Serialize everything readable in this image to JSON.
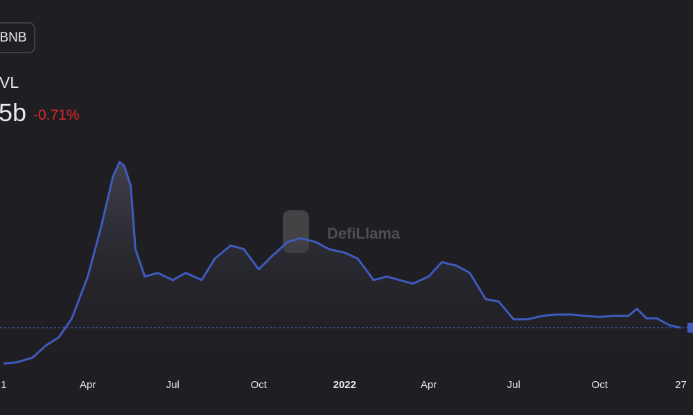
{
  "header": {
    "chain_button": "BNB",
    "metric_label": "VL",
    "metric_value": "5b",
    "change": "-0.71%"
  },
  "watermark": "DefiLlama",
  "chart_data": {
    "type": "area",
    "x": [
      "2021-01-01",
      "2021-01-15",
      "2021-02-01",
      "2021-02-15",
      "2021-03-01",
      "2021-03-15",
      "2021-04-01",
      "2021-04-15",
      "2021-04-28",
      "2021-05-05",
      "2021-05-10",
      "2021-05-17",
      "2021-05-22",
      "2021-06-01",
      "2021-06-15",
      "2021-07-01",
      "2021-07-15",
      "2021-08-01",
      "2021-08-15",
      "2021-09-01",
      "2021-09-15",
      "2021-10-01",
      "2021-10-15",
      "2021-11-01",
      "2021-11-15",
      "2021-12-01",
      "2021-12-15",
      "2022-01-01",
      "2022-01-15",
      "2022-02-01",
      "2022-02-15",
      "2022-03-01",
      "2022-03-15",
      "2022-04-01",
      "2022-04-15",
      "2022-05-01",
      "2022-05-15",
      "2022-06-01",
      "2022-06-15",
      "2022-07-01",
      "2022-07-15",
      "2022-08-01",
      "2022-08-15",
      "2022-09-01",
      "2022-09-15",
      "2022-10-01",
      "2022-10-15",
      "2022-11-01",
      "2022-11-10",
      "2022-11-20",
      "2022-12-01",
      "2022-12-15",
      "2022-12-27"
    ],
    "values": [
      2.0,
      2.1,
      2.5,
      3.5,
      4.2,
      5.8,
      9.3,
      13.4,
      17.7,
      18.9,
      18.6,
      16.9,
      11.6,
      9.3,
      9.6,
      9.0,
      9.6,
      9.0,
      10.8,
      11.9,
      11.6,
      9.9,
      11.0,
      12.2,
      12.5,
      12.2,
      11.6,
      11.3,
      10.8,
      9.0,
      9.3,
      9.0,
      8.7,
      9.3,
      10.5,
      10.2,
      9.6,
      7.4,
      7.2,
      5.7,
      5.7,
      6.0,
      6.1,
      6.1,
      6.0,
      5.9,
      6.0,
      6.0,
      6.6,
      5.8,
      5.8,
      5.2,
      5.0
    ],
    "color": "#3f5bc0",
    "xlim": [
      "2020-12-28",
      "2023-01-09"
    ],
    "ylim": [
      0,
      32.5
    ],
    "xticks": [
      {
        "value": "2021-01-01",
        "label": "1"
      },
      {
        "value": "2021-04-01",
        "label": "Apr"
      },
      {
        "value": "2021-07-01",
        "label": "Jul"
      },
      {
        "value": "2021-10-01",
        "label": "Oct"
      },
      {
        "value": "2022-01-01",
        "label": "2022"
      },
      {
        "value": "2022-04-01",
        "label": "Apr"
      },
      {
        "value": "2022-07-01",
        "label": "Jul"
      },
      {
        "value": "2022-10-01",
        "label": "Oct"
      },
      {
        "value": "2022-12-27",
        "label": "27"
      }
    ]
  }
}
